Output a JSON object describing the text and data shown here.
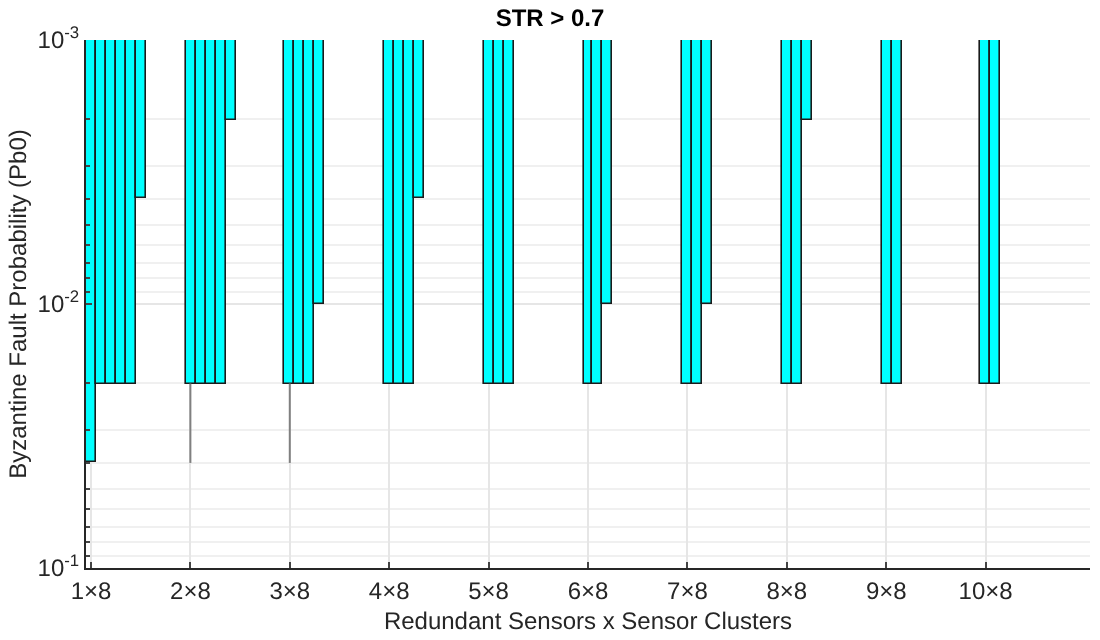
{
  "chart_data": {
    "type": "bar",
    "title": "STR > 0.7",
    "xlabel": "Redundant Sensors x Sensor Clusters",
    "ylabel": "Byzantine Fault Probability (Pb0)",
    "categories": [
      "1×8",
      null,
      null,
      null,
      null,
      null,
      null,
      null,
      null,
      null,
      "2×8",
      null,
      null,
      null,
      null,
      null,
      null,
      null,
      null,
      null,
      "3×8",
      null,
      null,
      null,
      null,
      null,
      null,
      null,
      null,
      null,
      "4×8",
      null,
      null,
      null,
      null,
      null,
      null,
      null,
      null,
      null,
      "5×8",
      null,
      null,
      null,
      null,
      null,
      null,
      null,
      null,
      null,
      "6×8",
      null,
      null,
      null,
      null,
      null,
      null,
      null,
      null,
      null,
      "7×8",
      null,
      null,
      null,
      null,
      null,
      null,
      null,
      null,
      null,
      "8×8",
      null,
      null,
      null,
      null,
      null,
      null,
      null,
      null,
      null,
      "9×8",
      null,
      null,
      null,
      null,
      null,
      null,
      null,
      null,
      null,
      "10×8",
      null,
      null,
      null,
      null,
      null,
      null,
      null,
      null,
      null,
      null
    ],
    "series": [
      {
        "color": "#00ffff",
        "values": [
          0.04,
          0.02,
          0.02,
          0.02,
          0.02,
          0.004,
          null,
          null,
          null,
          null,
          0.02,
          0.02,
          0.02,
          0.02,
          0.002,
          null,
          null,
          null,
          null,
          null,
          0.02,
          0.02,
          0.02,
          0.01,
          null,
          null,
          null,
          null,
          null,
          null,
          0.02,
          0.02,
          0.02,
          0.004,
          null,
          null,
          null,
          null,
          null,
          null,
          0.02,
          0.02,
          0.02,
          null,
          null,
          null,
          null,
          null,
          null,
          null,
          0.02,
          0.02,
          0.01,
          null,
          null,
          null,
          null,
          null,
          null,
          null,
          0.02,
          0.02,
          0.01,
          null,
          null,
          null,
          null,
          null,
          null,
          null,
          0.02,
          0.02,
          0.002,
          null,
          null,
          null,
          null,
          null,
          null,
          null,
          0.02,
          0.02,
          null,
          null,
          null,
          null,
          null,
          null,
          null,
          null,
          0.02,
          0.02,
          null,
          null,
          null,
          null,
          null,
          null,
          null,
          null,
          null
        ],
        "errors": [
          null,
          null,
          null,
          null,
          null,
          null,
          null,
          null,
          null,
          null,
          [
            0.02,
            0.04
          ],
          null,
          null,
          null,
          null,
          null,
          null,
          null,
          null,
          null,
          [
            0.02,
            0.04
          ],
          null,
          null,
          null,
          null,
          null,
          null,
          null,
          null,
          null,
          null,
          null,
          null,
          null,
          null,
          null,
          null,
          null,
          null,
          null,
          null,
          null,
          null,
          null,
          null,
          null,
          null,
          null,
          null,
          null,
          null,
          null,
          null,
          null,
          null,
          null,
          null,
          null,
          null,
          null,
          null,
          null,
          null,
          null,
          null,
          null,
          null,
          null,
          null,
          null,
          null,
          null,
          null,
          null,
          null,
          null,
          null,
          null,
          null,
          null,
          null,
          null,
          null,
          null,
          null,
          null,
          null,
          null,
          null,
          null,
          null,
          null,
          null,
          null,
          null,
          null,
          null,
          null,
          null,
          null,
          null
        ]
      }
    ],
    "ylim": [
      0.1,
      0.001
    ],
    "yticks": [
      {
        "value": 0.001,
        "label": "10$^{-3}$"
      },
      {
        "value": 0.01,
        "label": "10$^{-2}$"
      },
      {
        "value": 0.1,
        "label": "10$^{-1}$"
      }
    ],
    "log": "y",
    "grid": true
  }
}
